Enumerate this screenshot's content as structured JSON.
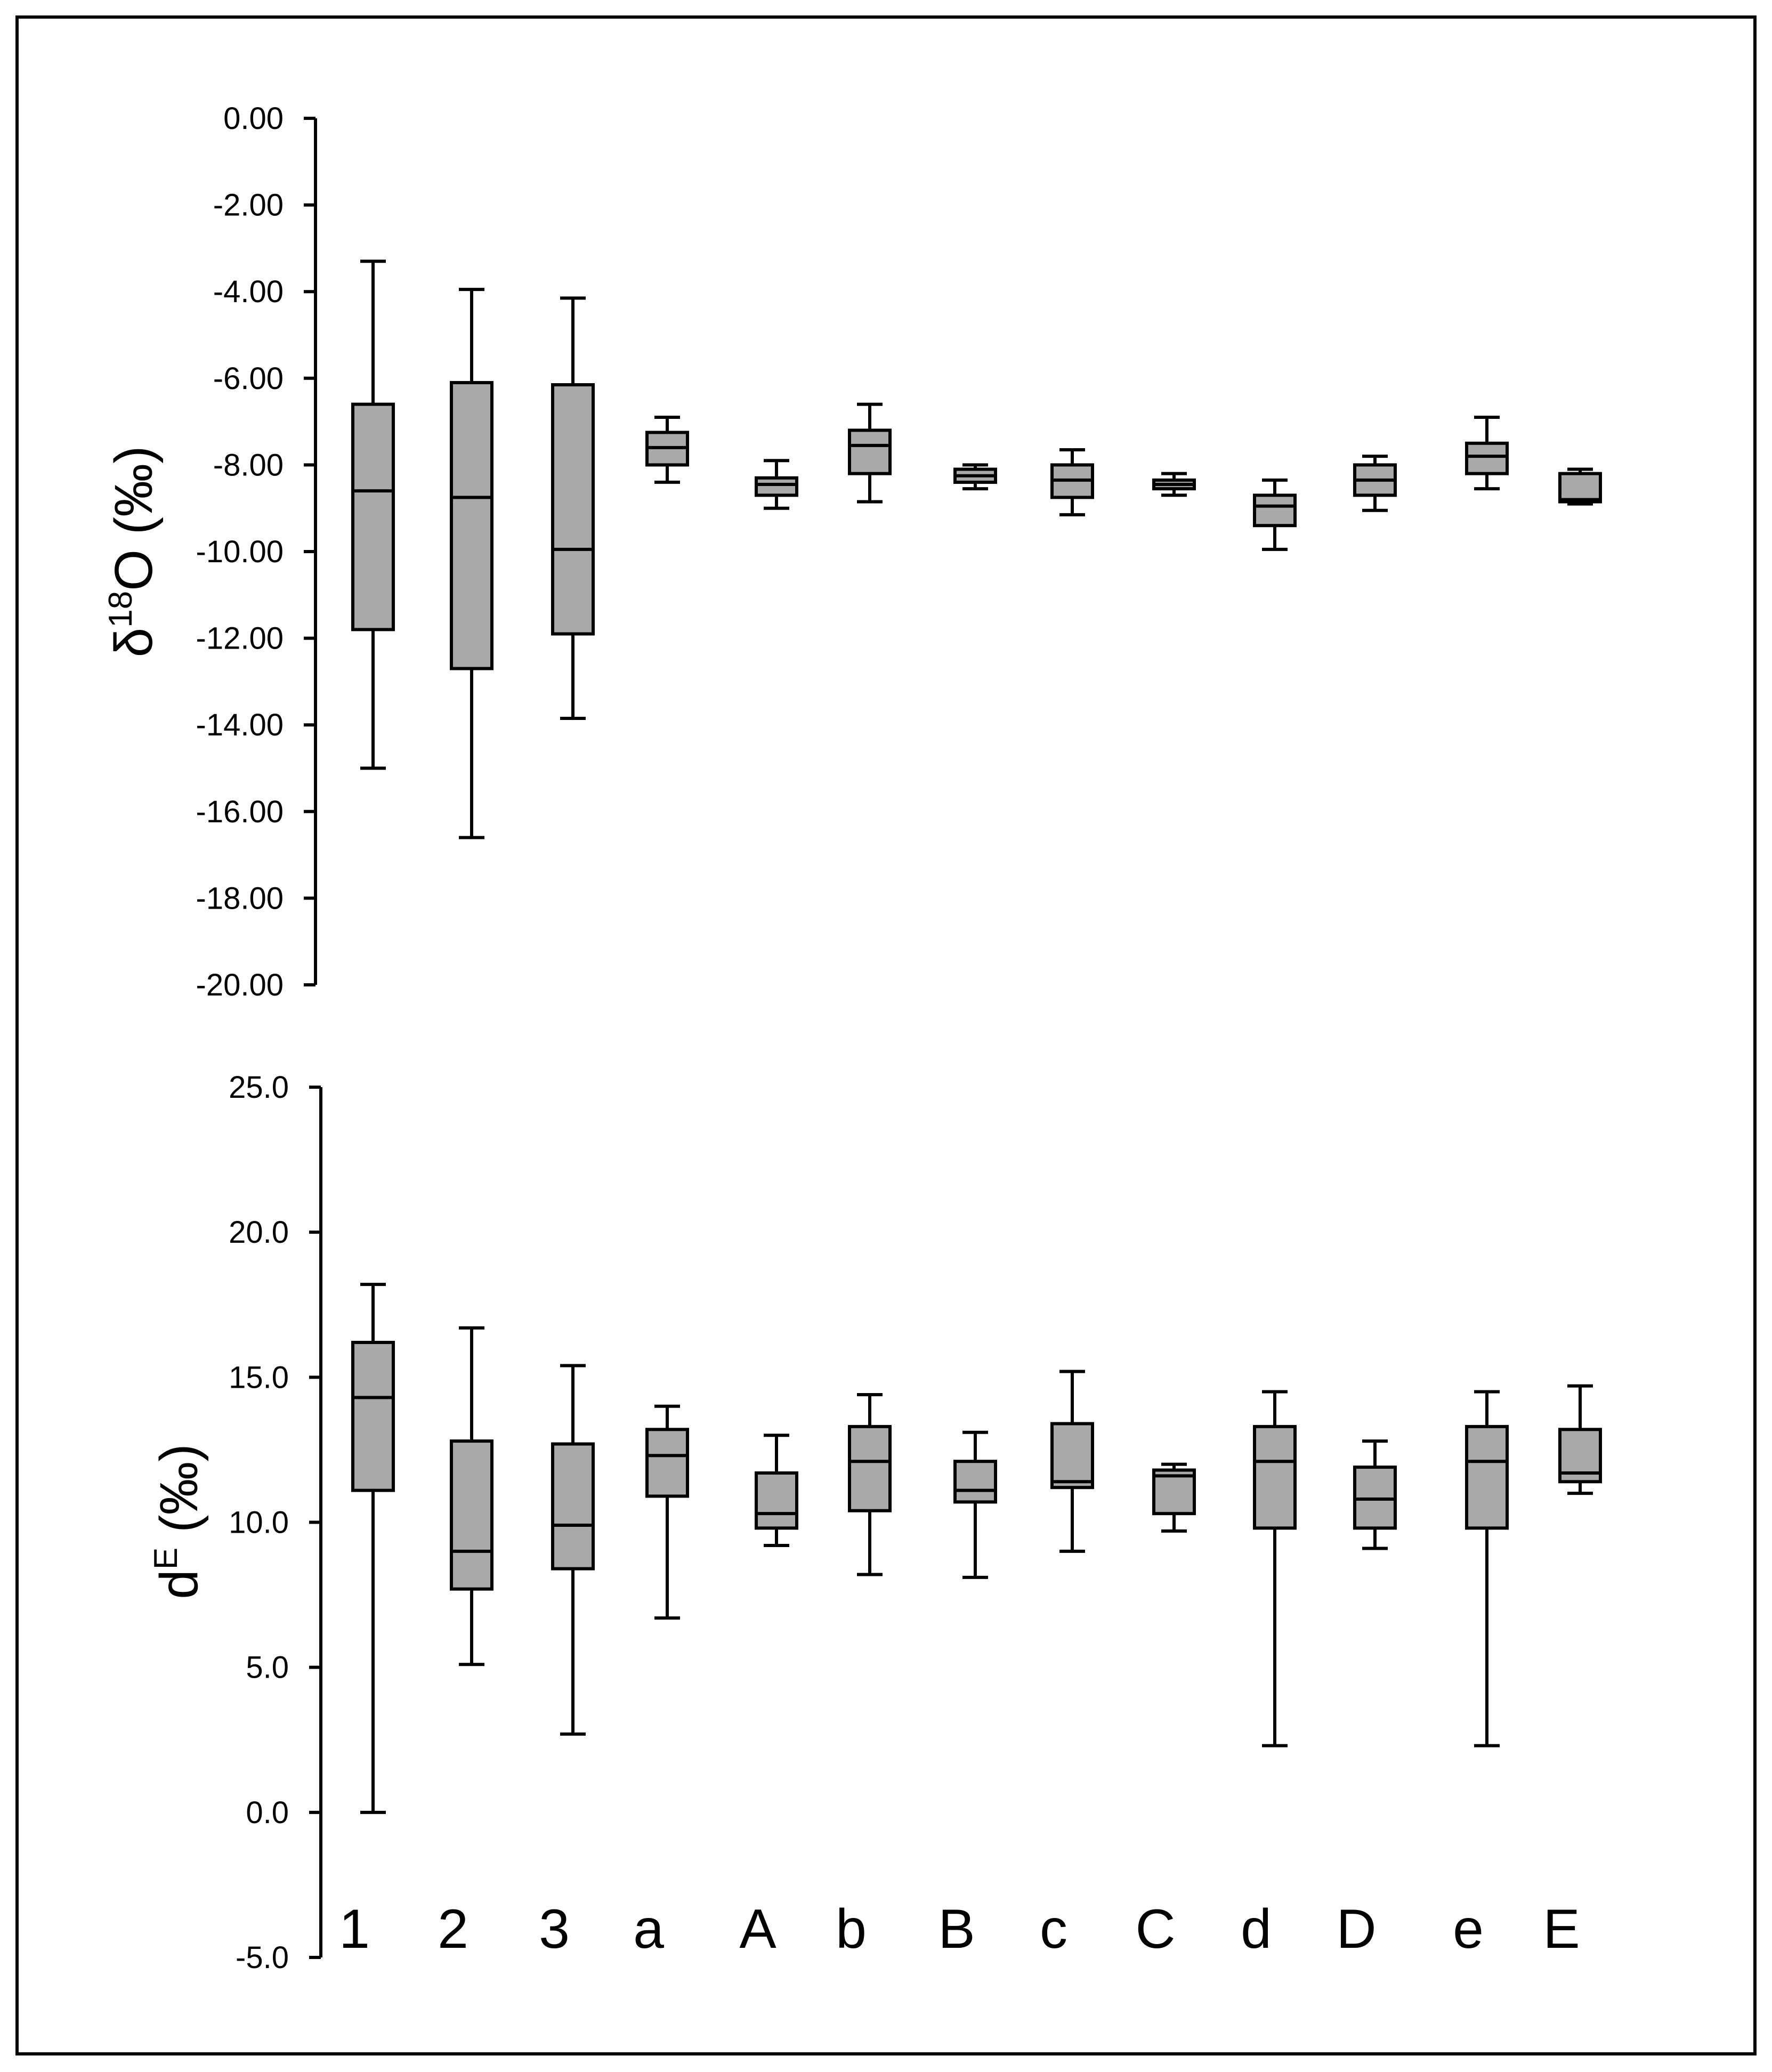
{
  "colors": {
    "box_fill": "#a9a9a9",
    "stroke": "#000000",
    "frame": "#000000",
    "background": "#ffffff"
  },
  "chart_data": [
    {
      "type": "box",
      "id": "top",
      "ylabel": {
        "prefix": "δ",
        "sup": "18",
        "suffix": "O (‰)"
      },
      "ylim": [
        -20,
        0
      ],
      "yticks": [
        0,
        -2,
        -4,
        -6,
        -8,
        -10,
        -12,
        -14,
        -16,
        -18,
        -20
      ],
      "ytick_labels": [
        "0.00",
        "-2.00",
        "-4.00",
        "-6.00",
        "-8.00",
        "-10.00",
        "-12.00",
        "-14.00",
        "-16.00",
        "-18.00",
        "-20.00"
      ],
      "categories": [
        "1",
        "2",
        "3",
        "a",
        "A",
        "b",
        "B",
        "c",
        "C",
        "d",
        "D",
        "e",
        "E"
      ],
      "boxes": [
        {
          "min": -15.0,
          "q1": -11.8,
          "median": -8.6,
          "q3": -6.6,
          "max": -3.3
        },
        {
          "min": -16.6,
          "q1": -12.7,
          "median": -8.75,
          "q3": -6.1,
          "max": -3.95
        },
        {
          "min": -13.85,
          "q1": -11.9,
          "median": -9.95,
          "q3": -6.15,
          "max": -4.15
        },
        {
          "min": -8.4,
          "q1": -8.0,
          "median": -7.6,
          "q3": -7.25,
          "max": -6.9
        },
        {
          "min": -9.0,
          "q1": -8.7,
          "median": -8.45,
          "q3": -8.3,
          "max": -7.9
        },
        {
          "min": -8.85,
          "q1": -8.2,
          "median": -7.55,
          "q3": -7.2,
          "max": -6.6
        },
        {
          "min": -8.55,
          "q1": -8.4,
          "median": -8.25,
          "q3": -8.1,
          "max": -8.0
        },
        {
          "min": -9.15,
          "q1": -8.75,
          "median": -8.35,
          "q3": -8.0,
          "max": -7.65
        },
        {
          "min": -8.7,
          "q1": -8.55,
          "median": -8.45,
          "q3": -8.35,
          "max": -8.2
        },
        {
          "min": -9.95,
          "q1": -9.4,
          "median": -8.95,
          "q3": -8.7,
          "max": -8.35
        },
        {
          "min": -9.05,
          "q1": -8.7,
          "median": -8.35,
          "q3": -8.0,
          "max": -7.8
        },
        {
          "min": -8.55,
          "q1": -8.2,
          "median": -7.8,
          "q3": -7.5,
          "max": -6.9
        },
        {
          "min": -8.9,
          "q1": -8.85,
          "median": -8.8,
          "q3": -8.2,
          "max": -8.1
        }
      ]
    },
    {
      "type": "box",
      "id": "bottom",
      "ylabel": {
        "prefix": "d",
        "sup": "E",
        "suffix": " (‰)"
      },
      "ylim": [
        -5,
        25
      ],
      "yticks": [
        25,
        20,
        15,
        10,
        5,
        0,
        -5
      ],
      "ytick_labels": [
        "25.0",
        "20.0",
        "15.0",
        "10.0",
        "5.0",
        "0.0",
        "-5.0"
      ],
      "categories": [
        "1",
        "2",
        "3",
        "a",
        "A",
        "b",
        "B",
        "c",
        "C",
        "d",
        "D",
        "e",
        "E"
      ],
      "boxes": [
        {
          "min": 0.0,
          "q1": 11.1,
          "median": 14.3,
          "q3": 16.2,
          "max": 18.2
        },
        {
          "min": 5.1,
          "q1": 7.7,
          "median": 9.0,
          "q3": 12.8,
          "max": 16.7
        },
        {
          "min": 2.7,
          "q1": 8.4,
          "median": 9.9,
          "q3": 12.7,
          "max": 15.4
        },
        {
          "min": 6.7,
          "q1": 10.9,
          "median": 12.3,
          "q3": 13.2,
          "max": 14.0
        },
        {
          "min": 9.2,
          "q1": 9.8,
          "median": 10.3,
          "q3": 11.7,
          "max": 13.0
        },
        {
          "min": 8.2,
          "q1": 10.4,
          "median": 12.1,
          "q3": 13.3,
          "max": 14.4
        },
        {
          "min": 8.1,
          "q1": 10.7,
          "median": 11.1,
          "q3": 12.1,
          "max": 13.1
        },
        {
          "min": 9.0,
          "q1": 11.2,
          "median": 11.4,
          "q3": 13.4,
          "max": 15.2
        },
        {
          "min": 9.7,
          "q1": 10.3,
          "median": 11.6,
          "q3": 11.8,
          "max": 12.0
        },
        {
          "min": 2.3,
          "q1": 9.8,
          "median": 12.1,
          "q3": 13.3,
          "max": 14.5
        },
        {
          "min": 9.1,
          "q1": 9.8,
          "median": 10.8,
          "q3": 11.9,
          "max": 12.8
        },
        {
          "min": 2.3,
          "q1": 9.8,
          "median": 12.1,
          "q3": 13.3,
          "max": 14.5
        },
        {
          "min": 11.0,
          "q1": 11.4,
          "median": 11.7,
          "q3": 13.2,
          "max": 14.7
        }
      ]
    }
  ]
}
